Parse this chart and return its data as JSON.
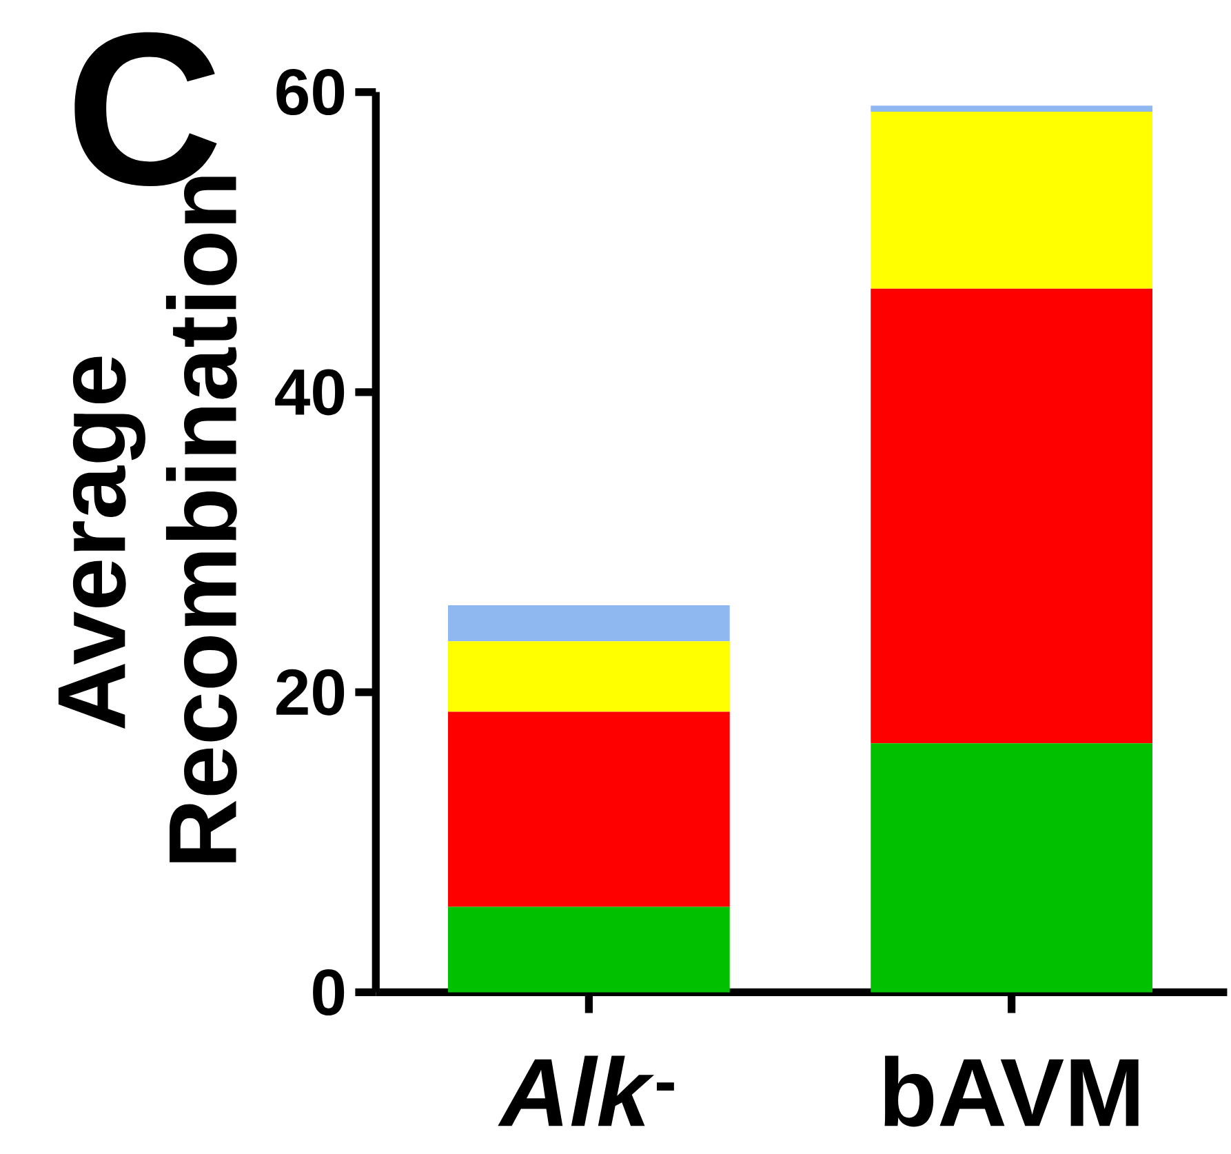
{
  "chart_data": {
    "type": "bar",
    "stacked": true,
    "ylabel": "Average Recombination",
    "categories": [
      "*Alk*$^{-}$",
      "bAVM"
    ],
    "series": [
      {
        "color": "#00c000",
        "values": [
          5.7,
          16.6
        ]
      },
      {
        "color": "#ff0000",
        "values": [
          13.0,
          30.3
        ]
      },
      {
        "color": "#ffff00",
        "values": [
          4.7,
          11.8
        ]
      },
      {
        "color": "#8fb8f0",
        "values": [
          2.4,
          0.4
        ]
      }
    ],
    "ylim": [
      0,
      60
    ],
    "yticks": [
      0,
      20,
      40,
      60
    ],
    "annotations": [
      "C"
    ]
  }
}
